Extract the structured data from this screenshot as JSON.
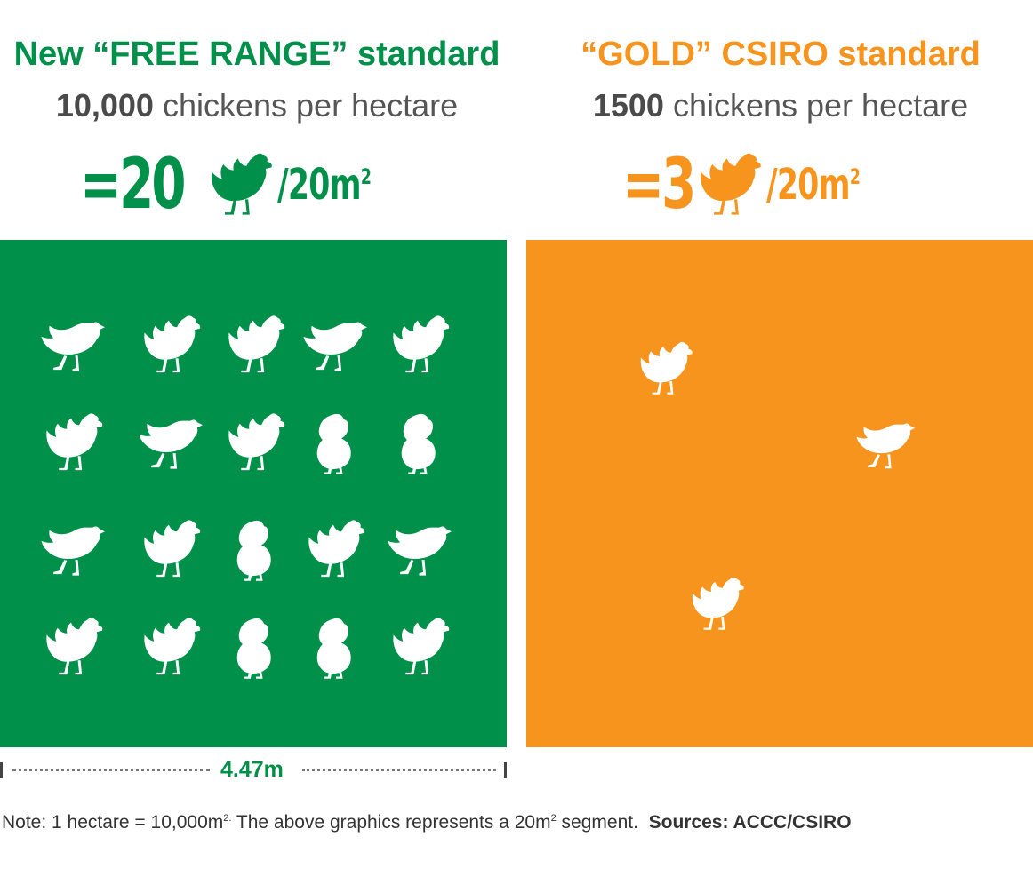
{
  "left": {
    "title": "New “FREE RANGE” standard",
    "density_number": "10,000",
    "density_text": "chickens per hectare",
    "rate_prefix": "=20",
    "rate_unit": "/20m",
    "rate_unit_exp": "2",
    "color": "#00904a",
    "hen_count": 20
  },
  "right": {
    "title": "“GOLD” CSIRO standard",
    "density_number": "1500",
    "density_text": "chickens per hectare",
    "rate_prefix": "=3",
    "rate_unit": "/20m",
    "rate_unit_exp": "2",
    "color": "#f7941e",
    "hen_count": 3
  },
  "scale": {
    "label": "4.47m"
  },
  "note": {
    "text1": "Note: 1 hectare = 10,000m",
    "sup1": "2.",
    "text2": " The above graphics represents a 20m",
    "sup2": "2",
    "text3": " segment.",
    "sources": "Sources: ACCC/CSIRO"
  },
  "icons": {
    "hen": "hen-icon"
  }
}
